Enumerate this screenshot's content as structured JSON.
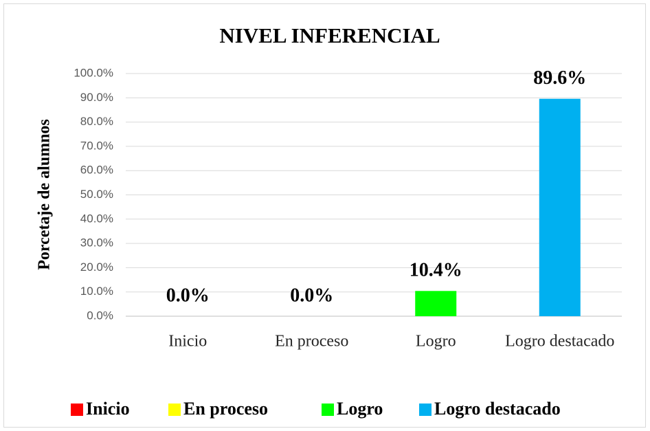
{
  "chart_data": {
    "type": "bar",
    "title": "NIVEL INFERENCIAL",
    "y_label": "Porcetaje de alumnos",
    "categories": [
      "Inicio",
      "En proceso",
      "Logro",
      "Logro destacado"
    ],
    "values": [
      0,
      0,
      10.4,
      89.6
    ],
    "value_labels": [
      "0.0%",
      "0.0%",
      "10.4%",
      "89.6%"
    ],
    "colors": [
      "#ff0000",
      "#ffff00",
      "#00ff00",
      "#00b0f0"
    ],
    "ylim": [
      0,
      100
    ],
    "yticks": [
      {
        "value": 0,
        "label": "0.0%"
      },
      {
        "value": 10,
        "label": "10.0%"
      },
      {
        "value": 20,
        "label": "20.0%"
      },
      {
        "value": 30,
        "label": "30.0%"
      },
      {
        "value": 40,
        "label": "40.0%"
      },
      {
        "value": 50,
        "label": "50.0%"
      },
      {
        "value": 60,
        "label": "60.0%"
      },
      {
        "value": 70,
        "label": "70.0%"
      },
      {
        "value": 80,
        "label": "80.0%"
      },
      {
        "value": 90,
        "label": "90.0%"
      },
      {
        "value": 100,
        "label": "100.0%"
      }
    ],
    "grid": true,
    "legend": "bottom"
  }
}
